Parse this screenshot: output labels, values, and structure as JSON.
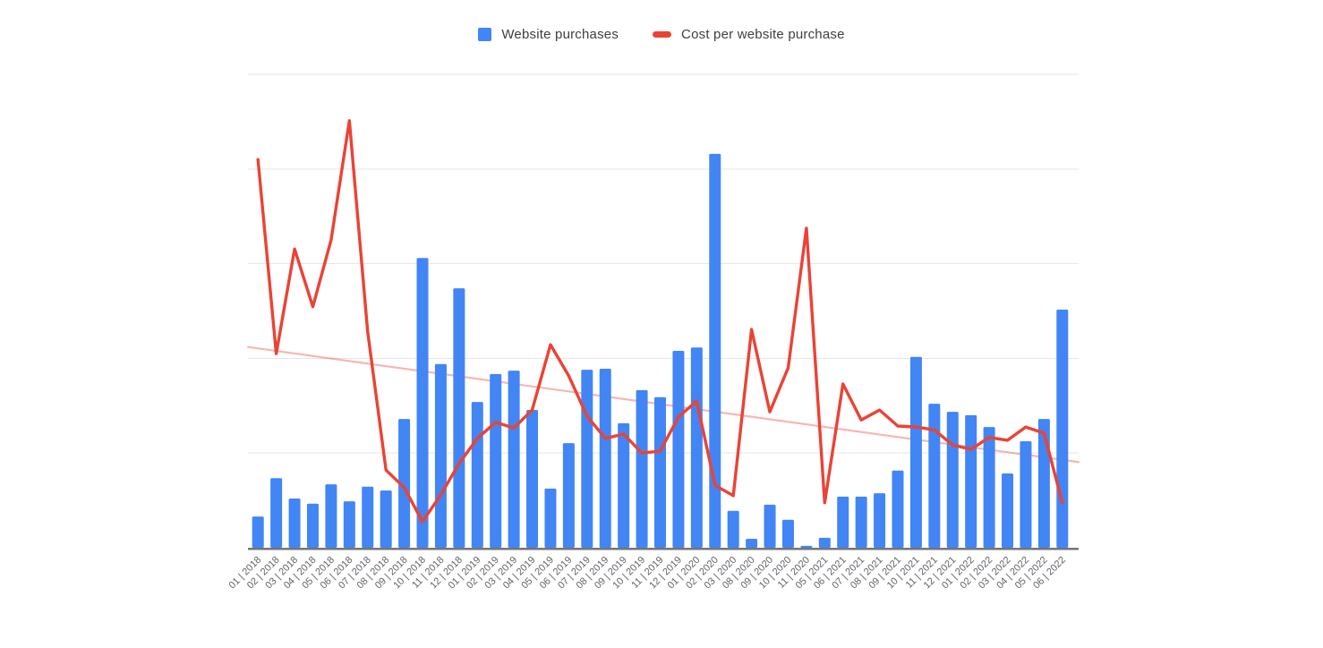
{
  "page": {
    "background": "#ffffff"
  },
  "legend": {
    "items": [
      {
        "label": "Website purchases",
        "color": "#4285f4",
        "marker": "square"
      },
      {
        "label": "Cost per website purchase",
        "color": "#ea4335",
        "marker": "dash"
      }
    ]
  },
  "axis": {
    "grid_color": "#e6e6e6",
    "axis_line_color": "#757575",
    "label_color": "#5f6368",
    "label_rotation_deg": -45
  },
  "chart_data": {
    "type": "bar",
    "subtype": "combo-bar-line",
    "title": "",
    "xlabel": "",
    "ylabel": "",
    "y_axis_labels_visible": false,
    "value_units": "percent of plot height (y axis is unlabeled in source image)",
    "ylim": [
      0,
      100
    ],
    "grid": true,
    "gridline_values": [
      20,
      40,
      60,
      80,
      100
    ],
    "legend_position": "top-center",
    "categories": [
      "01 | 2018",
      "02 | 2018",
      "03 | 2018",
      "04 | 2018",
      "05 | 2018",
      "06 | 2018",
      "07 | 2018",
      "08 | 2018",
      "09 | 2018",
      "10 | 2018",
      "11 | 2018",
      "12 | 2018",
      "01 | 2019",
      "02 | 2019",
      "03 | 2019",
      "04 | 2019",
      "05 | 2019",
      "06 | 2019",
      "07 | 2019",
      "08 | 2019",
      "09 | 2019",
      "10 | 2019",
      "11 | 2019",
      "12 | 2019",
      "01 | 2020",
      "02 | 2020",
      "03 | 2020",
      "08 | 2020",
      "09 | 2020",
      "10 | 2020",
      "11 | 2020",
      "05 | 2021",
      "06 | 2021",
      "07 | 2021",
      "08 | 2021",
      "09 | 2021",
      "10 | 2021",
      "11 | 2021",
      "12 | 2021",
      "01 | 2022",
      "02 | 2022",
      "03 | 2022",
      "04 | 2022",
      "05 | 2022",
      "06 | 2022"
    ],
    "series": [
      {
        "name": "Website purchases",
        "type": "bar",
        "color": "#4285f4",
        "values": [
          6.6,
          14.7,
          10.4,
          9.3,
          13.4,
          9.8,
          12.9,
          12.1,
          27.2,
          61.2,
          38.8,
          54.8,
          30.8,
          36.7,
          37.4,
          29.1,
          12.5,
          22.1,
          37.6,
          37.8,
          26.3,
          33.3,
          31.8,
          41.6,
          42.3,
          83.2,
          7.8,
          1.9,
          9.1,
          5.9,
          0.4,
          2.1,
          10.8,
          10.8,
          11.5,
          16.3,
          40.3,
          30.4,
          28.7,
          28.0,
          25.5,
          15.7,
          22.5,
          27.2,
          50.3
        ]
      },
      {
        "name": "Cost per website purchase",
        "type": "line",
        "color": "#ea4335",
        "values": [
          82.0,
          41.0,
          63.1,
          50.9,
          65.0,
          90.2,
          45.7,
          16.4,
          12.7,
          5.5,
          11.2,
          17.8,
          23.1,
          26.5,
          25.3,
          29.1,
          42.9,
          36.3,
          27.8,
          23.1,
          24.0,
          20.0,
          20.4,
          27.6,
          31.0,
          13.2,
          11.0,
          46.1,
          28.7,
          38.0,
          67.5,
          9.5,
          34.6,
          27.0,
          29.1,
          25.7,
          25.5,
          24.9,
          21.7,
          20.8,
          23.3,
          22.7,
          25.5,
          24.2,
          9.5
        ]
      },
      {
        "name": "Cost per website purchase trendline",
        "type": "trendline",
        "color": "rgba(234,67,53,0.38)",
        "start_value": 42.4,
        "end_value": 18.1
      }
    ]
  }
}
